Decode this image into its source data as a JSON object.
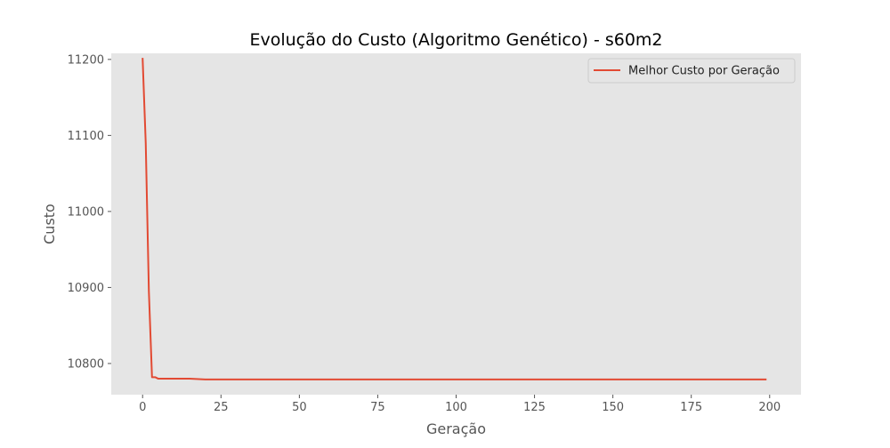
{
  "chart_data": {
    "type": "line",
    "title": "Evolução do Custo (Algoritmo Genético) - s60m2",
    "xlabel": "Geração",
    "ylabel": "Custo",
    "xlim": [
      -10,
      210
    ],
    "ylim": [
      10759,
      11208
    ],
    "x_ticks": [
      0,
      25,
      50,
      75,
      100,
      125,
      150,
      175,
      200
    ],
    "y_ticks": [
      10800,
      10900,
      11000,
      11100,
      11200
    ],
    "grid": false,
    "legend": {
      "position": "top-right"
    },
    "series": [
      {
        "name": "Melhor Custo por Geração",
        "color": "#E24A33",
        "x": [
          0,
          1,
          2,
          3,
          4,
          5,
          10,
          15,
          20,
          50,
          100,
          150,
          199
        ],
        "y": [
          11202,
          11090,
          10895,
          10782,
          10782,
          10780,
          10780,
          10780,
          10779,
          10779,
          10779,
          10779,
          10779
        ]
      }
    ]
  },
  "colors": {
    "plot_background": "#E5E5E5",
    "axis_text": "#555555",
    "title_text": "#000000"
  }
}
